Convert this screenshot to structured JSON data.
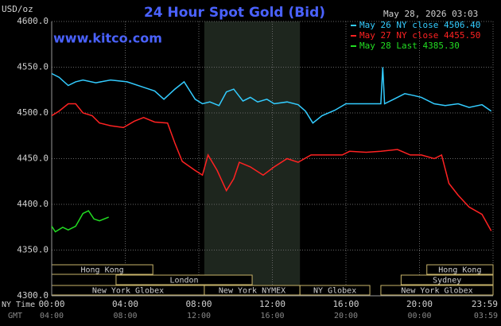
{
  "chart_data": {
    "type": "line",
    "title": "24 Hour Spot Gold (Bid)",
    "timestamp": "May 28, 2026 03:03",
    "source": "www.kitco.com",
    "y_label": "USD/oz",
    "x_label": "NY Time",
    "x2_label": "GMT",
    "xlim": [
      0,
      24
    ],
    "xticks": [
      {
        "value": 0,
        "label": "00:00"
      },
      {
        "value": 4,
        "label": "04:00"
      },
      {
        "value": 8,
        "label": "08:00"
      },
      {
        "value": 12,
        "label": "12:00"
      },
      {
        "value": 16,
        "label": "16:00"
      },
      {
        "value": 20,
        "label": "20:00"
      },
      {
        "value": 24,
        "label": "23:59"
      }
    ],
    "x2ticks": [
      {
        "value": 0,
        "label": "04:00"
      },
      {
        "value": 4,
        "label": "08:00"
      },
      {
        "value": 8,
        "label": "12:00"
      },
      {
        "value": 12,
        "label": "16:00"
      },
      {
        "value": 16,
        "label": "20:00"
      },
      {
        "value": 20,
        "label": "00:00"
      },
      {
        "value": 24,
        "label": "03:59"
      }
    ],
    "ylim": [
      4300,
      4600
    ],
    "yticks": [
      {
        "value": 4300,
        "label": "4300.0"
      },
      {
        "value": 4350,
        "label": "4350.0"
      },
      {
        "value": 4400,
        "label": "4400.0"
      },
      {
        "value": 4450,
        "label": "4450.0"
      },
      {
        "value": 4500,
        "label": "4500.0"
      },
      {
        "value": 4550,
        "label": "4550.0"
      },
      {
        "value": 4600,
        "label": "4600.0"
      }
    ],
    "grid": true,
    "highlight": [
      8.3,
      13.5
    ],
    "series": [
      {
        "name": "May 26 NY close 4506.40",
        "color": "#33ccff",
        "x": [
          0,
          0.4,
          0.9,
          1.3,
          1.7,
          2.4,
          3.2,
          4.1,
          5.0,
          5.6,
          6.1,
          6.7,
          7.2,
          7.8,
          8.2,
          8.6,
          9.1,
          9.5,
          9.9,
          10.4,
          10.8,
          11.2,
          11.7,
          12.1,
          12.8,
          13.4,
          13.8,
          14.2,
          14.7,
          15.4,
          16.0,
          16.9,
          17.9,
          18.0,
          18.1,
          18.6,
          19.2,
          19.7,
          20.1,
          20.8,
          21.4,
          22.1,
          22.7,
          23.4,
          23.9
        ],
        "values": [
          4543,
          4539,
          4530,
          4534,
          4536,
          4533,
          4536,
          4534,
          4528,
          4524,
          4515,
          4526,
          4534,
          4515,
          4510,
          4512,
          4508,
          4523,
          4526,
          4513,
          4517,
          4512,
          4515,
          4510,
          4512,
          4509,
          4502,
          4489,
          4497,
          4503,
          4510,
          4510,
          4510,
          4550,
          4510,
          4515,
          4521,
          4519,
          4517,
          4510,
          4508,
          4510,
          4506,
          4509,
          4502
        ]
      },
      {
        "name": "May 27 NY close 4455.50",
        "color": "#ff2222",
        "x": [
          0,
          0.4,
          0.9,
          1.3,
          1.7,
          2.2,
          2.6,
          3.2,
          3.9,
          4.5,
          5.0,
          5.6,
          6.3,
          6.7,
          7.1,
          7.8,
          8.2,
          8.5,
          9.0,
          9.5,
          9.9,
          10.2,
          10.8,
          11.5,
          12.1,
          12.8,
          13.4,
          14.1,
          14.9,
          15.8,
          16.2,
          17.1,
          17.9,
          18.8,
          19.5,
          20.1,
          20.8,
          21.2,
          21.6,
          22.1,
          22.7,
          23.4,
          23.9
        ],
        "values": [
          4497,
          4502,
          4510,
          4510,
          4500,
          4497,
          4489,
          4486,
          4484,
          4491,
          4495,
          4490,
          4489,
          4467,
          4447,
          4437,
          4432,
          4454,
          4437,
          4415,
          4428,
          4446,
          4441,
          4432,
          4441,
          4450,
          4446,
          4454,
          4454,
          4454,
          4458,
          4457,
          4458,
          4460,
          4454,
          4454,
          4450,
          4454,
          4423,
          4410,
          4397,
          4389,
          4371
        ]
      },
      {
        "name": "May 28 Last 4385.30",
        "color": "#22dd22",
        "x": [
          0,
          0.2,
          0.6,
          0.9,
          1.3,
          1.7,
          2.0,
          2.3,
          2.6,
          3.1
        ],
        "values": [
          4376,
          4370,
          4375,
          4372,
          4376,
          4390,
          4393,
          4384,
          4382,
          4386
        ]
      }
    ],
    "sessions": [
      [
        {
          "label": "Hong Kong",
          "start": 0,
          "end": 5.5
        },
        {
          "label": "Hong Kong",
          "start": 20.4,
          "end": 24
        }
      ],
      [
        {
          "label": "London",
          "start": 3.5,
          "end": 10.9
        },
        {
          "label": "Sydney",
          "start": 19.0,
          "end": 24
        }
      ],
      [
        {
          "label": "New York Globex",
          "start": 0,
          "end": 8.3
        },
        {
          "label": "New York NYMEX",
          "start": 8.3,
          "end": 13.5
        },
        {
          "label": "NY Globex",
          "start": 13.5,
          "end": 17.3
        },
        {
          "label": "New York Globex",
          "start": 17.9,
          "end": 24
        }
      ]
    ]
  }
}
